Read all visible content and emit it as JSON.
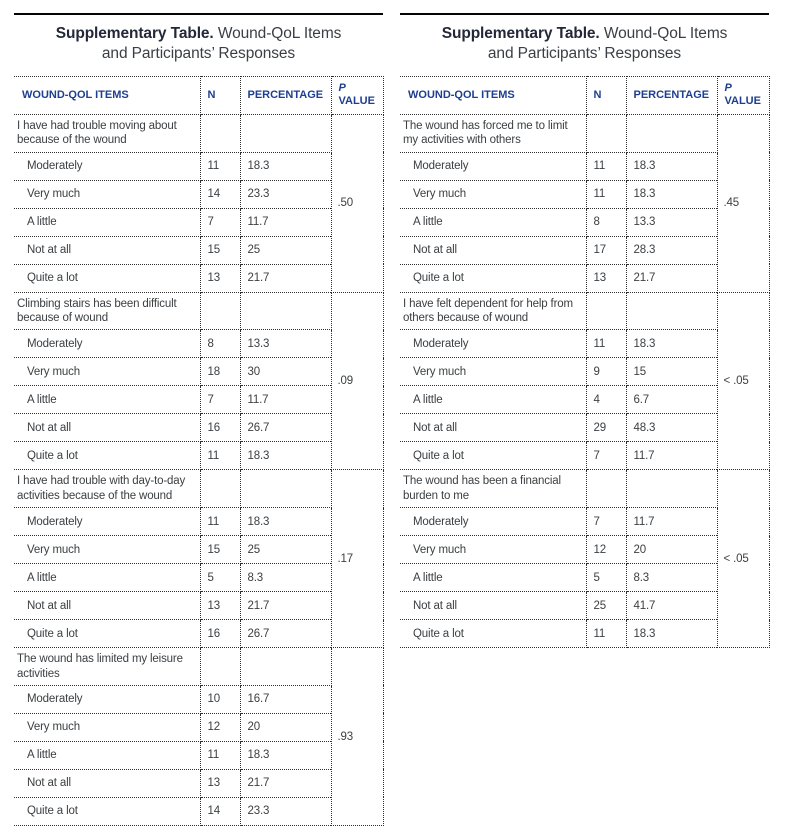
{
  "accent_color": "#1e3e8f",
  "rule_color": "#050505",
  "tables": [
    {
      "title_bold": "Supplementary Table.",
      "title_rest": "Wound-QoL Items",
      "title_line2": "and Participants’ Responses",
      "headers": {
        "items": "WOUND-QOL ITEMS",
        "n": "N",
        "percentage": "PERCENTAGE",
        "p_line1": "P",
        "p_line2": "VALUE"
      },
      "sections": [
        {
          "question": "I have had trouble moving about because of the wound",
          "p_value": ".50",
          "responses": [
            {
              "label": "Moderately",
              "n": "11",
              "percentage": "18.3"
            },
            {
              "label": "Very much",
              "n": "14",
              "percentage": "23.3"
            },
            {
              "label": "A little",
              "n": "7",
              "percentage": "11.7"
            },
            {
              "label": "Not at all",
              "n": "15",
              "percentage": "25"
            },
            {
              "label": "Quite a lot",
              "n": "13",
              "percentage": "21.7"
            }
          ]
        },
        {
          "question": "Climbing stairs has been difficult because of wound",
          "p_value": ".09",
          "responses": [
            {
              "label": "Moderately",
              "n": "8",
              "percentage": "13.3"
            },
            {
              "label": "Very much",
              "n": "18",
              "percentage": "30"
            },
            {
              "label": "A little",
              "n": "7",
              "percentage": "11.7"
            },
            {
              "label": "Not at all",
              "n": "16",
              "percentage": "26.7"
            },
            {
              "label": "Quite a lot",
              "n": "11",
              "percentage": "18.3"
            }
          ]
        },
        {
          "question": "I have had trouble with day-to-day activities because of the wound",
          "p_value": ".17",
          "responses": [
            {
              "label": "Moderately",
              "n": "11",
              "percentage": "18.3"
            },
            {
              "label": "Very much",
              "n": "15",
              "percentage": "25"
            },
            {
              "label": "A little",
              "n": "5",
              "percentage": "8.3"
            },
            {
              "label": "Not at all",
              "n": "13",
              "percentage": "21.7"
            },
            {
              "label": "Quite a lot",
              "n": "16",
              "percentage": "26.7"
            }
          ]
        },
        {
          "question": "The wound has limited my leisure activities",
          "p_value": ".93",
          "responses": [
            {
              "label": "Moderately",
              "n": "10",
              "percentage": "16.7"
            },
            {
              "label": "Very much",
              "n": "12",
              "percentage": "20"
            },
            {
              "label": "A little",
              "n": "11",
              "percentage": "18.3"
            },
            {
              "label": "Not at all",
              "n": "13",
              "percentage": "21.7"
            },
            {
              "label": "Quite a lot",
              "n": "14",
              "percentage": "23.3"
            }
          ]
        }
      ]
    },
    {
      "title_bold": "Supplementary Table.",
      "title_rest": "Wound-QoL Items",
      "title_line2": "and Participants’ Responses",
      "headers": {
        "items": "WOUND-QOL ITEMS",
        "n": "N",
        "percentage": "PERCENTAGE",
        "p_line1": "P",
        "p_line2": "VALUE"
      },
      "sections": [
        {
          "question": "The wound has forced me to limit my activities with others",
          "p_value": ".45",
          "responses": [
            {
              "label": "Moderately",
              "n": "11",
              "percentage": "18.3"
            },
            {
              "label": "Very much",
              "n": "11",
              "percentage": "18.3"
            },
            {
              "label": "A little",
              "n": "8",
              "percentage": "13.3"
            },
            {
              "label": "Not at all",
              "n": "17",
              "percentage": "28.3"
            },
            {
              "label": "Quite a lot",
              "n": "13",
              "percentage": "21.7"
            }
          ]
        },
        {
          "question": "I have felt dependent for help from others because of wound",
          "p_value": "< .05",
          "responses": [
            {
              "label": "Moderately",
              "n": "11",
              "percentage": "18.3"
            },
            {
              "label": "Very much",
              "n": "9",
              "percentage": "15"
            },
            {
              "label": "A little",
              "n": "4",
              "percentage": "6.7"
            },
            {
              "label": "Not at all",
              "n": "29",
              "percentage": "48.3"
            },
            {
              "label": "Quite a lot",
              "n": "7",
              "percentage": "11.7"
            }
          ]
        },
        {
          "question": "The wound has been a financial burden to me",
          "p_value": "< .05",
          "responses": [
            {
              "label": "Moderately",
              "n": "7",
              "percentage": "11.7"
            },
            {
              "label": "Very much",
              "n": "12",
              "percentage": "20"
            },
            {
              "label": "A little",
              "n": "5",
              "percentage": "8.3"
            },
            {
              "label": "Not at all",
              "n": "25",
              "percentage": "41.7"
            },
            {
              "label": "Quite a lot",
              "n": "11",
              "percentage": "18.3"
            }
          ]
        }
      ]
    }
  ]
}
